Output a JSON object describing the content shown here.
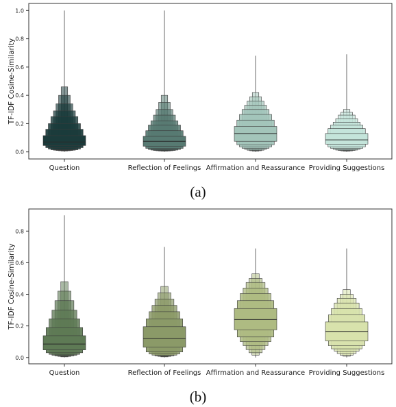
{
  "figure": {
    "caption_a": "(a)",
    "caption_b": "(b)"
  },
  "chart_data": [
    {
      "type": "boxen",
      "ylabel": "TF-IDF Cosine-Similarity",
      "ylim": [
        -0.05,
        1.05
      ],
      "yticks": [
        0.0,
        0.2,
        0.4,
        0.6,
        0.8,
        1.0
      ],
      "categories": [
        "Question",
        "Reflection of Feelings",
        "Affirmation and Reassurance",
        "Providing Suggestions"
      ],
      "colors": [
        "#1b3b3b",
        "#577a72",
        "#a3c5ba",
        "#c4e4da"
      ],
      "series": [
        {
          "median": 0.07,
          "boxes": [
            [
              0.045,
              0.115
            ],
            [
              0.03,
              0.16
            ],
            [
              0.02,
              0.2
            ],
            [
              0.015,
              0.25
            ],
            [
              0.012,
              0.29
            ],
            [
              0.01,
              0.34
            ],
            [
              0.008,
              0.4
            ],
            [
              0.006,
              0.46
            ]
          ],
          "whisker": [
            0.0,
            1.0
          ]
        },
        {
          "median": 0.075,
          "boxes": [
            [
              0.04,
              0.11
            ],
            [
              0.025,
              0.15
            ],
            [
              0.017,
              0.19
            ],
            [
              0.013,
              0.22
            ],
            [
              0.01,
              0.26
            ],
            [
              0.008,
              0.3
            ],
            [
              0.006,
              0.35
            ],
            [
              0.005,
              0.4
            ]
          ],
          "whisker": [
            0.0,
            1.0
          ]
        },
        {
          "median": 0.13,
          "boxes": [
            [
              0.075,
              0.18
            ],
            [
              0.05,
              0.225
            ],
            [
              0.035,
              0.265
            ],
            [
              0.025,
              0.3
            ],
            [
              0.018,
              0.33
            ],
            [
              0.012,
              0.36
            ],
            [
              0.008,
              0.39
            ],
            [
              0.005,
              0.42
            ]
          ],
          "whisker": [
            0.0,
            0.68
          ]
        },
        {
          "median": 0.085,
          "boxes": [
            [
              0.055,
              0.13
            ],
            [
              0.035,
              0.165
            ],
            [
              0.025,
              0.19
            ],
            [
              0.018,
              0.21
            ],
            [
              0.013,
              0.235
            ],
            [
              0.01,
              0.26
            ],
            [
              0.007,
              0.28
            ],
            [
              0.005,
              0.3
            ]
          ],
          "whisker": [
            0.0,
            0.69
          ]
        }
      ]
    },
    {
      "type": "boxen",
      "ylabel": "TF-IDF Cosine-Similarity",
      "ylim": [
        -0.04,
        0.94
      ],
      "yticks": [
        0.0,
        0.2,
        0.4,
        0.6,
        0.8
      ],
      "categories": [
        "Question",
        "Reflection of Feelings",
        "Affirmation and Reassurance",
        "Providing Suggestions"
      ],
      "colors": [
        "#5e7a55",
        "#8b9a68",
        "#aebb82",
        "#d8e2ac"
      ],
      "series": [
        {
          "median": 0.085,
          "boxes": [
            [
              0.048,
              0.138
            ],
            [
              0.03,
              0.19
            ],
            [
              0.02,
              0.245
            ],
            [
              0.014,
              0.3
            ],
            [
              0.01,
              0.36
            ],
            [
              0.007,
              0.42
            ],
            [
              0.004,
              0.48
            ]
          ],
          "whisker": [
            0.0,
            0.9
          ]
        },
        {
          "median": 0.12,
          "boxes": [
            [
              0.065,
              0.195
            ],
            [
              0.035,
              0.245
            ],
            [
              0.022,
              0.29
            ],
            [
              0.015,
              0.33
            ],
            [
              0.01,
              0.37
            ],
            [
              0.007,
              0.41
            ],
            [
              0.004,
              0.45
            ]
          ],
          "whisker": [
            0.0,
            0.7
          ]
        },
        {
          "median": 0.24,
          "boxes": [
            [
              0.175,
              0.31
            ],
            [
              0.13,
              0.36
            ],
            [
              0.1,
              0.405
            ],
            [
              0.075,
              0.44
            ],
            [
              0.05,
              0.475
            ],
            [
              0.03,
              0.5
            ],
            [
              0.015,
              0.53
            ]
          ],
          "whisker": [
            0.0,
            0.69
          ]
        },
        {
          "median": 0.165,
          "boxes": [
            [
              0.105,
              0.225
            ],
            [
              0.075,
              0.27
            ],
            [
              0.055,
              0.31
            ],
            [
              0.04,
              0.345
            ],
            [
              0.025,
              0.375
            ],
            [
              0.015,
              0.4
            ],
            [
              0.008,
              0.43
            ]
          ],
          "whisker": [
            0.0,
            0.69
          ]
        }
      ]
    }
  ]
}
